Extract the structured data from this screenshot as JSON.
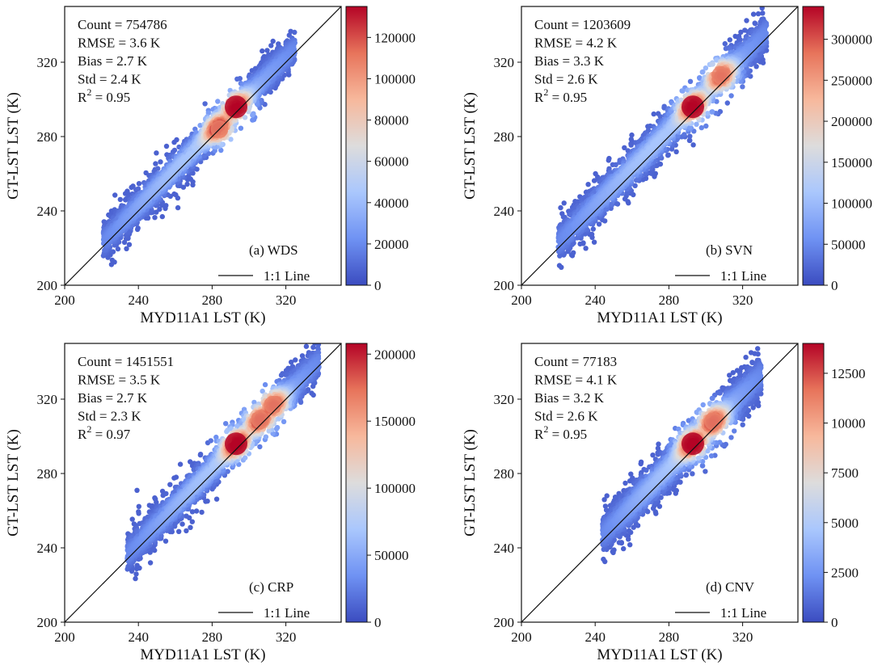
{
  "figure": {
    "colormap": [
      "#3b4cc0",
      "#6f92f3",
      "#aac7fd",
      "#dddcdc",
      "#f7b89c",
      "#e7745b",
      "#b40426"
    ]
  },
  "chart_data": [
    {
      "type": "scatter",
      "panel_label": "(a) WDS",
      "xlabel": "MYD11A1 LST (K)",
      "ylabel": "GT-LST LST (K)",
      "xlim": [
        200,
        350
      ],
      "ylim": [
        200,
        350
      ],
      "xticks": [
        "200",
        "240",
        "280",
        "320"
      ],
      "yticks": [
        "200",
        "240",
        "280",
        "320"
      ],
      "stats": {
        "count_text": "Count = 754786",
        "rmse_text": "RMSE = 3.6 K",
        "bias_text": "Bias = 2.7 K",
        "std_text": "Std = 2.4 K",
        "r2_prefix": "R",
        "r2_sup": "2",
        "r2_suffix": " = 0.95"
      },
      "legend": {
        "line_label": "1:1 Line",
        "position": "lower-right"
      },
      "colorbar": {
        "min": 0,
        "max": 135000,
        "ticks": [
          "0",
          "20000",
          "40000",
          "60000",
          "80000",
          "100000",
          "120000"
        ],
        "tick_values": [
          0,
          20000,
          40000,
          60000,
          80000,
          100000,
          120000
        ]
      },
      "density_band": {
        "x_range": [
          221,
          325
        ],
        "offset": 2.7,
        "spread": 4.8,
        "cores": [
          [
            293,
            296
          ],
          [
            284,
            284
          ]
        ]
      },
      "density_peak_xy": [
        293,
        296
      ]
    },
    {
      "type": "scatter",
      "panel_label": "(b) SVN",
      "xlabel": "MYD11A1 LST (K)",
      "ylabel": "GT-LST LST (K)",
      "xlim": [
        200,
        350
      ],
      "ylim": [
        200,
        350
      ],
      "xticks": [
        "200",
        "240",
        "280",
        "320"
      ],
      "yticks": [
        "200",
        "240",
        "280",
        "320"
      ],
      "stats": {
        "count_text": "Count = 1203609",
        "rmse_text": "RMSE = 4.2 K",
        "bias_text": "Bias = 3.3 K",
        "std_text": "Std = 2.6 K",
        "r2_prefix": "R",
        "r2_sup": "2",
        "r2_suffix": " = 0.95"
      },
      "legend": {
        "line_label": "1:1 Line",
        "position": "lower-right"
      },
      "colorbar": {
        "min": 0,
        "max": 340000,
        "ticks": [
          "0",
          "50000",
          "100000",
          "150000",
          "200000",
          "250000",
          "300000"
        ],
        "tick_values": [
          0,
          50000,
          100000,
          150000,
          200000,
          250000,
          300000
        ]
      },
      "density_band": {
        "x_range": [
          220,
          333
        ],
        "offset": 3.3,
        "spread": 5.4,
        "cores": [
          [
            293,
            296
          ],
          [
            308,
            313
          ]
        ]
      },
      "density_peak_xy": [
        293,
        296
      ]
    },
    {
      "type": "scatter",
      "panel_label": "(c) CRP",
      "xlabel": "MYD11A1 LST (K)",
      "ylabel": "GT-LST LST (K)",
      "xlim": [
        200,
        350
      ],
      "ylim": [
        200,
        350
      ],
      "xticks": [
        "200",
        "240",
        "280",
        "320"
      ],
      "yticks": [
        "200",
        "240",
        "280",
        "320"
      ],
      "stats": {
        "count_text": "Count = 1451551",
        "rmse_text": "RMSE = 3.5 K",
        "bias_text": "Bias = 2.7 K",
        "std_text": "Std = 2.3 K",
        "r2_prefix": "R",
        "r2_sup": "2",
        "r2_suffix": " = 0.97"
      },
      "legend": {
        "line_label": "1:1 Line",
        "position": "lower-right"
      },
      "colorbar": {
        "min": 0,
        "max": 208000,
        "ticks": [
          "0",
          "50000",
          "100000",
          "150000",
          "200000"
        ],
        "tick_values": [
          0,
          50000,
          100000,
          150000,
          200000
        ]
      },
      "density_band": {
        "x_range": [
          234,
          338
        ],
        "offset": 2.7,
        "spread": 5.0,
        "cores": [
          [
            293,
            296
          ],
          [
            306,
            309
          ],
          [
            313,
            317
          ]
        ]
      },
      "density_peak_xy": [
        293,
        296
      ]
    },
    {
      "type": "scatter",
      "panel_label": "(d) CNV",
      "xlabel": "MYD11A1 LST (K)",
      "ylabel": "GT-LST LST (K)",
      "xlim": [
        200,
        350
      ],
      "ylim": [
        200,
        350
      ],
      "xticks": [
        "200",
        "240",
        "280",
        "320"
      ],
      "yticks": [
        "200",
        "240",
        "280",
        "320"
      ],
      "stats": {
        "count_text": "Count = 77183",
        "rmse_text": "RMSE = 4.1 K",
        "bias_text": "Bias = 3.2 K",
        "std_text": "Std = 2.6 K",
        "r2_prefix": "R",
        "r2_sup": "2",
        "r2_suffix": " = 0.95"
      },
      "legend": {
        "line_label": "1:1 Line",
        "position": "lower-right"
      },
      "colorbar": {
        "min": 0,
        "max": 14000,
        "ticks": [
          "0",
          "2500",
          "5000",
          "7500",
          "10000",
          "12500"
        ],
        "tick_values": [
          0,
          2500,
          5000,
          7500,
          10000,
          12500
        ]
      },
      "density_band": {
        "x_range": [
          244,
          330
        ],
        "offset": 3.2,
        "spread": 5.6,
        "cores": [
          [
            293,
            296
          ],
          [
            304,
            308
          ]
        ]
      },
      "density_peak_xy": [
        293,
        296
      ]
    }
  ]
}
